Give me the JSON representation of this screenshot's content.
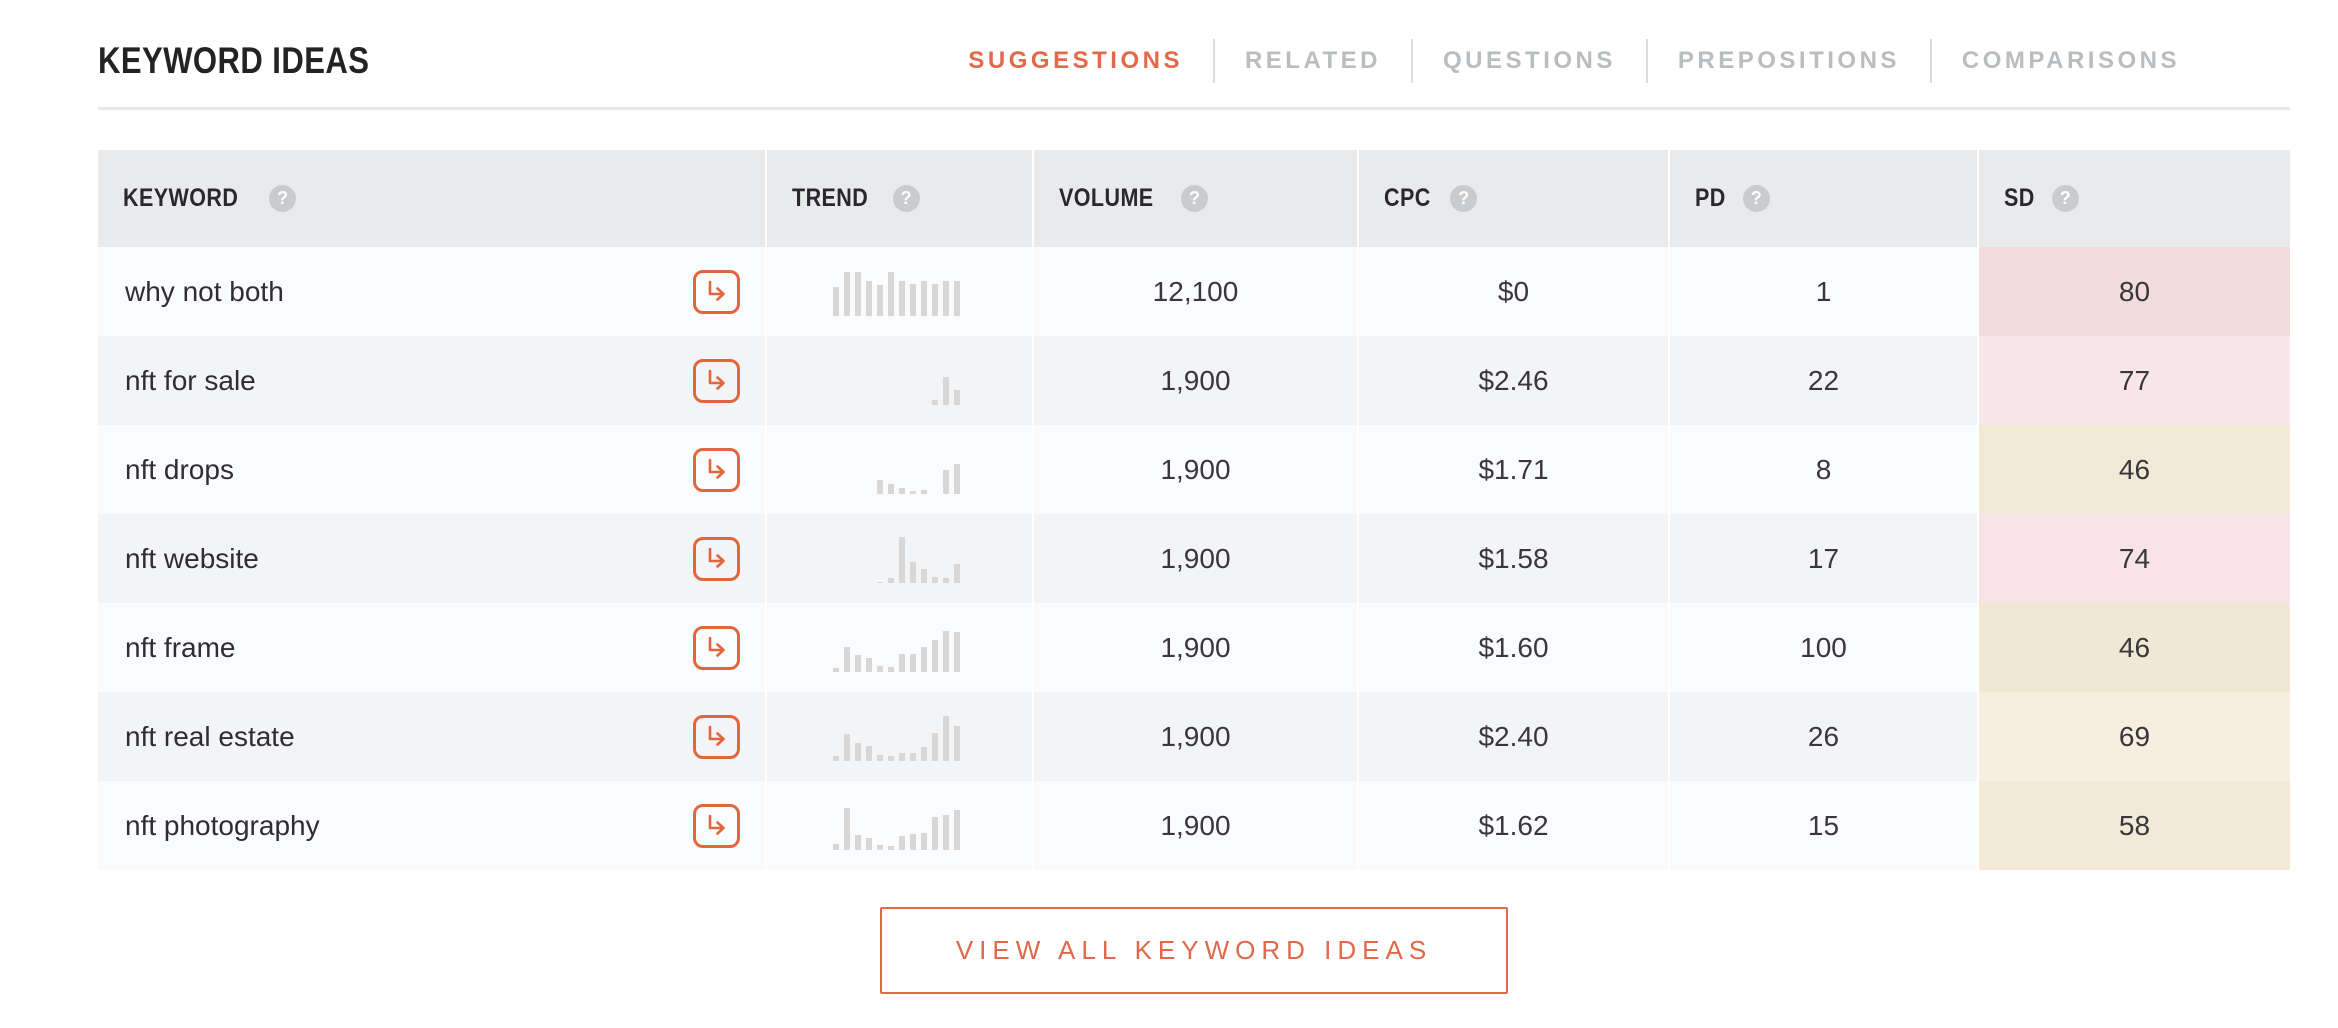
{
  "page": {
    "title": "KEYWORD IDEAS"
  },
  "tabs": [
    {
      "label": "SUGGESTIONS",
      "active": true
    },
    {
      "label": "RELATED",
      "active": false
    },
    {
      "label": "QUESTIONS",
      "active": false
    },
    {
      "label": "PREPOSITIONS",
      "active": false
    },
    {
      "label": "COMPARISONS",
      "active": false
    }
  ],
  "table": {
    "columns": [
      {
        "label": "KEYWORD",
        "help": "?"
      },
      {
        "label": "TREND",
        "help": "?"
      },
      {
        "label": "VOLUME",
        "help": "?"
      },
      {
        "label": "CPC",
        "help": "?"
      },
      {
        "label": "PD",
        "help": "?"
      },
      {
        "label": "SD",
        "help": "?"
      }
    ],
    "rows": [
      {
        "keyword": "why not both",
        "trend": [
          62,
          95,
          95,
          77,
          68,
          95,
          75,
          70,
          75,
          70,
          75,
          75
        ],
        "volume": "12,100",
        "cpc": "$0",
        "pd": "1",
        "sd": "80",
        "sd_bg": "#f2dcdc"
      },
      {
        "keyword": "nft for sale",
        "trend": [
          0,
          0,
          0,
          0,
          0,
          0,
          0,
          0,
          0,
          10,
          60,
          33
        ],
        "volume": "1,900",
        "cpc": "$2.46",
        "pd": "22",
        "sd": "77",
        "sd_bg": "#f9e6e8"
      },
      {
        "keyword": "nft drops",
        "trend": [
          0,
          0,
          0,
          0,
          30,
          22,
          12,
          7,
          9,
          0,
          52,
          65
        ],
        "volume": "1,900",
        "cpc": "$1.71",
        "pd": "8",
        "sd": "46",
        "sd_bg": "#f1e9d6"
      },
      {
        "keyword": "nft website",
        "trend": [
          0,
          0,
          0,
          0,
          3,
          10,
          100,
          45,
          30,
          12,
          10,
          42
        ],
        "volume": "1,900",
        "cpc": "$1.58",
        "pd": "17",
        "sd": "74",
        "sd_bg": "#f8e4e6"
      },
      {
        "keyword": "nft frame",
        "trend": [
          8,
          55,
          38,
          30,
          13,
          11,
          40,
          40,
          55,
          70,
          90,
          88
        ],
        "volume": "1,900",
        "cpc": "$1.60",
        "pd": "100",
        "sd": "46",
        "sd_bg": "#f0e8d4"
      },
      {
        "keyword": "nft real estate",
        "trend": [
          10,
          58,
          40,
          32,
          14,
          10,
          18,
          18,
          30,
          60,
          97,
          77
        ],
        "volume": "1,900",
        "cpc": "$2.40",
        "pd": "26",
        "sd": "69",
        "sd_bg": "#f6eede"
      },
      {
        "keyword": "nft photography",
        "trend": [
          12,
          92,
          33,
          26,
          10,
          8,
          30,
          35,
          38,
          72,
          75,
          88
        ],
        "volume": "1,900",
        "cpc": "$1.62",
        "pd": "15",
        "sd": "58",
        "sd_bg": "#f2ead7"
      }
    ]
  },
  "footer": {
    "view_all_label": "VIEW ALL KEYWORD IDEAS"
  },
  "colors": {
    "accent": "#e2694a",
    "arrow_border": "#e0663d",
    "tab_inactive": "#b9bdc0",
    "header_bg": "#e9eaeb",
    "row_odd": "#fafbfc",
    "row_even": "#f3f4f5",
    "trend_bar": "#d7d7d8",
    "help_badge_bg": "#c9cbcd"
  }
}
